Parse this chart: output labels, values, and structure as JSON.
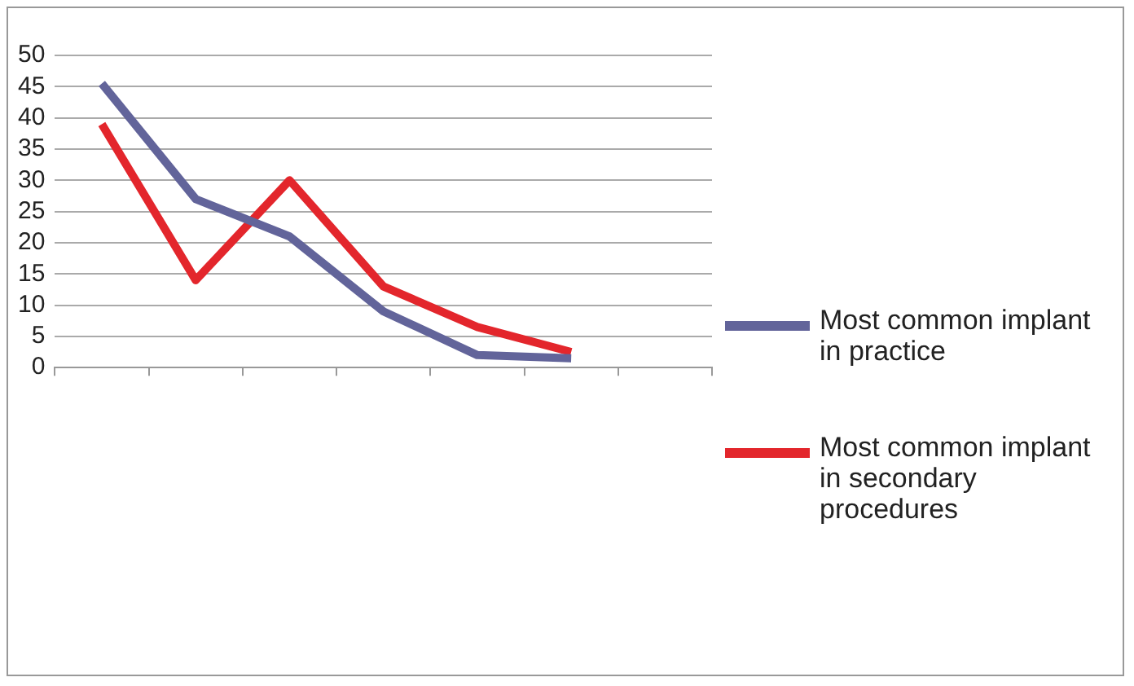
{
  "chart_data": {
    "type": "line",
    "categories": [
      null,
      null,
      null,
      null,
      null,
      null,
      null
    ],
    "ylim": [
      0,
      50
    ],
    "yticks": [
      0,
      5,
      10,
      15,
      20,
      25,
      30,
      35,
      40,
      45,
      50
    ],
    "grid": "y",
    "legend": "right",
    "marker": "none",
    "series": [
      {
        "name": "Most common implant in practice",
        "color": "#62649a",
        "values": [
          45.5,
          27,
          21,
          9,
          2,
          1.5,
          null
        ]
      },
      {
        "name": "Most common implant in secondary procedures",
        "color": "#e3262c",
        "values": [
          39,
          14,
          30,
          13,
          6.5,
          2.5,
          null
        ]
      }
    ]
  }
}
